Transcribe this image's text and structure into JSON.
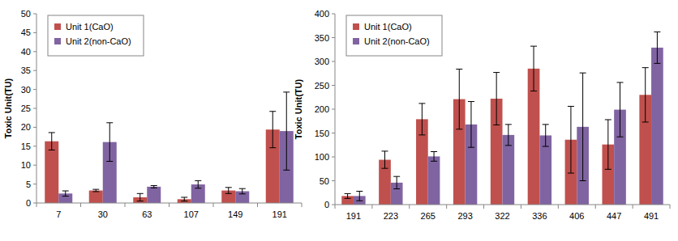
{
  "chart_data": [
    {
      "type": "bar",
      "y_label": "Toxic Unit(TU)",
      "categories": [
        "7",
        "30",
        "63",
        "107",
        "149",
        "191"
      ],
      "series": [
        {
          "name": "Unit 1(CaO)",
          "color": "#c0504d",
          "values": [
            16.3,
            3.3,
            1.5,
            1.0,
            3.3,
            19.4
          ],
          "errors": [
            2.3,
            0.3,
            1.0,
            0.5,
            0.8,
            4.8
          ]
        },
        {
          "name": "Unit 2(non-CaO)",
          "color": "#8064a2",
          "values": [
            2.5,
            16.1,
            4.3,
            4.9,
            3.1,
            19.0
          ],
          "errors": [
            0.7,
            5.1,
            0.3,
            1.0,
            0.7,
            10.3
          ]
        }
      ],
      "ylim": [
        0,
        50
      ],
      "yticks": [
        0,
        5,
        10,
        15,
        20,
        25,
        30,
        35,
        40,
        45,
        50
      ],
      "grid": false,
      "legend": "upper left"
    },
    {
      "type": "bar",
      "y_label": "Toxic Unit(TU)",
      "categories": [
        "191",
        "223",
        "265",
        "293",
        "322",
        "336",
        "406",
        "447",
        "491"
      ],
      "series": [
        {
          "name": "Unit 1(CaO)",
          "color": "#c0504d",
          "values": [
            18,
            94,
            179,
            221,
            222,
            285,
            136,
            126,
            230
          ],
          "errors": [
            5,
            18,
            33,
            63,
            55,
            47,
            70,
            52,
            57
          ]
        },
        {
          "name": "Unit 2(non-CaO)",
          "color": "#8064a2",
          "values": [
            18,
            46,
            101,
            168,
            146,
            145,
            163,
            199,
            329
          ],
          "errors": [
            10,
            13,
            10,
            48,
            22,
            23,
            113,
            57,
            33
          ]
        }
      ],
      "ylim": [
        0,
        400
      ],
      "yticks": [
        0,
        50,
        100,
        150,
        200,
        250,
        300,
        350,
        400
      ],
      "grid": false,
      "legend": "upper left"
    }
  ]
}
